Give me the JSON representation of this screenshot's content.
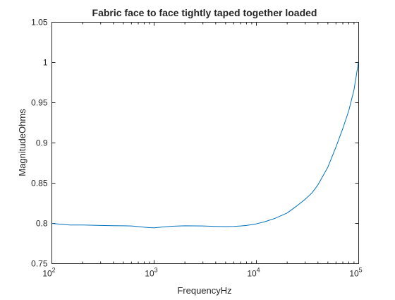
{
  "chart_data": {
    "type": "line",
    "title": "Fabric face to face tightly taped together loaded",
    "xlabel": "FrequencyHz",
    "ylabel": "MagnitudeOhms",
    "xscale": "log",
    "xlim": [
      100,
      100000
    ],
    "ylim": [
      0.75,
      1.05
    ],
    "grid": false,
    "line_color": "#0072bd",
    "x_ticks": [
      {
        "value": 100,
        "base": "10",
        "exp": "2"
      },
      {
        "value": 1000,
        "base": "10",
        "exp": "3"
      },
      {
        "value": 10000,
        "base": "10",
        "exp": "4"
      },
      {
        "value": 100000,
        "base": "10",
        "exp": "5"
      }
    ],
    "y_ticks": [
      {
        "value": 0.75,
        "label": "0.75"
      },
      {
        "value": 0.8,
        "label": "0.8"
      },
      {
        "value": 0.85,
        "label": "0.85"
      },
      {
        "value": 0.9,
        "label": "0.9"
      },
      {
        "value": 0.95,
        "label": "0.95"
      },
      {
        "value": 1,
        "label": "1"
      },
      {
        "value": 1.05,
        "label": "1.05"
      }
    ],
    "series": [
      {
        "x": [
          100,
          150,
          200,
          300,
          400,
          500,
          600,
          700,
          800,
          900,
          1000,
          1200,
          1500,
          2000,
          3000,
          4000,
          5000,
          6000,
          7000,
          8000,
          9000,
          10000,
          12000,
          15000,
          20000,
          25000,
          30000,
          35000,
          40000,
          50000,
          60000,
          70000,
          80000,
          90000,
          100000
        ],
        "y": [
          0.8,
          0.798,
          0.798,
          0.7975,
          0.7972,
          0.797,
          0.7968,
          0.796,
          0.7953,
          0.7947,
          0.7945,
          0.7955,
          0.7965,
          0.797,
          0.7968,
          0.7963,
          0.796,
          0.7963,
          0.7968,
          0.7975,
          0.7985,
          0.7995,
          0.802,
          0.806,
          0.813,
          0.822,
          0.83,
          0.838,
          0.848,
          0.87,
          0.895,
          0.918,
          0.94,
          0.966,
          1.002
        ]
      }
    ]
  }
}
